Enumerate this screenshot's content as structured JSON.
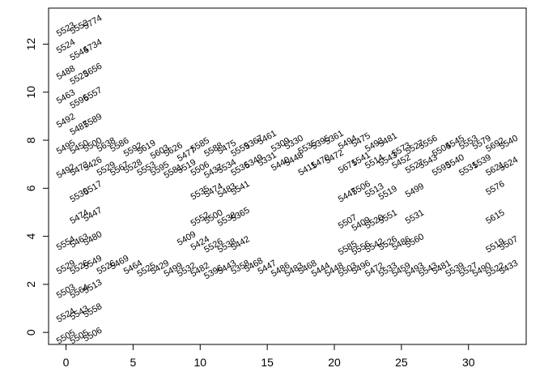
{
  "chart_data": {
    "type": "scatter",
    "title": "",
    "xlabel": "",
    "ylabel": "",
    "xlim": [
      -1.3,
      34.3
    ],
    "ylim": [
      -0.5,
      13.5
    ],
    "x_ticks": [
      0,
      5,
      10,
      15,
      20,
      25,
      30
    ],
    "y_ticks": [
      0,
      2,
      4,
      6,
      8,
      10,
      12
    ],
    "label_rotation_deg": 30,
    "points": [
      {
        "x": 0,
        "y": 12.6,
        "label": "5523"
      },
      {
        "x": 1,
        "y": 12.7,
        "label": "5553"
      },
      {
        "x": 2,
        "y": 12.9,
        "label": "5774"
      },
      {
        "x": 0,
        "y": 11.9,
        "label": "5524"
      },
      {
        "x": 1,
        "y": 11.6,
        "label": "5544"
      },
      {
        "x": 2,
        "y": 11.9,
        "label": "5734"
      },
      {
        "x": 0,
        "y": 10.8,
        "label": "5488"
      },
      {
        "x": 1,
        "y": 10.6,
        "label": "5523"
      },
      {
        "x": 2,
        "y": 10.9,
        "label": "5656"
      },
      {
        "x": 0,
        "y": 9.8,
        "label": "5463"
      },
      {
        "x": 1,
        "y": 9.6,
        "label": "5596"
      },
      {
        "x": 2,
        "y": 9.9,
        "label": "5557"
      },
      {
        "x": 0,
        "y": 8.8,
        "label": "5492"
      },
      {
        "x": 1,
        "y": 8.5,
        "label": "5487"
      },
      {
        "x": 2,
        "y": 8.8,
        "label": "5589"
      },
      {
        "x": 0,
        "y": 7.7,
        "label": "5495"
      },
      {
        "x": 1,
        "y": 7.7,
        "label": "5450"
      },
      {
        "x": 2,
        "y": 7.8,
        "label": "5500"
      },
      {
        "x": 3,
        "y": 7.8,
        "label": "5638"
      },
      {
        "x": 4,
        "y": 7.8,
        "label": "5586"
      },
      {
        "x": 5,
        "y": 7.6,
        "label": "5592"
      },
      {
        "x": 6,
        "y": 7.7,
        "label": "5619"
      },
      {
        "x": 7,
        "y": 7.5,
        "label": "5603"
      },
      {
        "x": 8,
        "y": 7.6,
        "label": "5626"
      },
      {
        "x": 9,
        "y": 7.4,
        "label": "5477"
      },
      {
        "x": 10,
        "y": 7.8,
        "label": "5585"
      },
      {
        "x": 11,
        "y": 7.6,
        "label": "5588"
      },
      {
        "x": 12,
        "y": 7.7,
        "label": "5475"
      },
      {
        "x": 13,
        "y": 7.6,
        "label": "5559"
      },
      {
        "x": 14,
        "y": 7.9,
        "label": "5367"
      },
      {
        "x": 15,
        "y": 8.1,
        "label": "5461"
      },
      {
        "x": 16,
        "y": 7.8,
        "label": "5309"
      },
      {
        "x": 17,
        "y": 7.9,
        "label": "5330"
      },
      {
        "x": 18,
        "y": 7.7,
        "label": "5535"
      },
      {
        "x": 19,
        "y": 7.9,
        "label": "5395"
      },
      {
        "x": 20,
        "y": 8.1,
        "label": "5361"
      },
      {
        "x": 21,
        "y": 7.9,
        "label": "5494"
      },
      {
        "x": 22,
        "y": 8.0,
        "label": "5475"
      },
      {
        "x": 23,
        "y": 7.8,
        "label": "5493"
      },
      {
        "x": 24,
        "y": 8.0,
        "label": "5481"
      },
      {
        "x": 25,
        "y": 7.6,
        "label": "5573"
      },
      {
        "x": 26,
        "y": 7.7,
        "label": "5527"
      },
      {
        "x": 27,
        "y": 7.9,
        "label": "5556"
      },
      {
        "x": 28,
        "y": 7.6,
        "label": "5504"
      },
      {
        "x": 29,
        "y": 7.9,
        "label": "5545"
      },
      {
        "x": 30,
        "y": 7.9,
        "label": "5553"
      },
      {
        "x": 31,
        "y": 7.9,
        "label": "5579"
      },
      {
        "x": 32,
        "y": 7.8,
        "label": "5692"
      },
      {
        "x": 33,
        "y": 7.9,
        "label": "5540"
      },
      {
        "x": 0,
        "y": 6.7,
        "label": "5492"
      },
      {
        "x": 1,
        "y": 6.8,
        "label": "5473"
      },
      {
        "x": 2,
        "y": 7.0,
        "label": "5426"
      },
      {
        "x": 3,
        "y": 6.8,
        "label": "5529"
      },
      {
        "x": 4,
        "y": 6.8,
        "label": "5567"
      },
      {
        "x": 5,
        "y": 6.9,
        "label": "5528"
      },
      {
        "x": 6,
        "y": 6.8,
        "label": "5553"
      },
      {
        "x": 7,
        "y": 6.8,
        "label": "5595"
      },
      {
        "x": 8,
        "y": 6.7,
        "label": "5581"
      },
      {
        "x": 9,
        "y": 6.9,
        "label": "5519"
      },
      {
        "x": 10,
        "y": 6.8,
        "label": "5506"
      },
      {
        "x": 11,
        "y": 6.7,
        "label": "5437"
      },
      {
        "x": 12,
        "y": 6.9,
        "label": "5534"
      },
      {
        "x": 13,
        "y": 6.8,
        "label": "5536"
      },
      {
        "x": 14,
        "y": 7.1,
        "label": "5349"
      },
      {
        "x": 15,
        "y": 7.2,
        "label": "5331"
      },
      {
        "x": 16,
        "y": 7.0,
        "label": "5440"
      },
      {
        "x": 17,
        "y": 7.2,
        "label": "5448"
      },
      {
        "x": 18,
        "y": 6.8,
        "label": "5411"
      },
      {
        "x": 19,
        "y": 7.1,
        "label": "5470"
      },
      {
        "x": 20,
        "y": 7.3,
        "label": "5472"
      },
      {
        "x": 21,
        "y": 6.9,
        "label": "5671"
      },
      {
        "x": 22,
        "y": 7.2,
        "label": "5541"
      },
      {
        "x": 23,
        "y": 7.1,
        "label": "5514"
      },
      {
        "x": 24,
        "y": 7.2,
        "label": "5543"
      },
      {
        "x": 25,
        "y": 7.1,
        "label": "5452"
      },
      {
        "x": 26,
        "y": 6.9,
        "label": "5527"
      },
      {
        "x": 27,
        "y": 7.1,
        "label": "5543"
      },
      {
        "x": 28,
        "y": 6.8,
        "label": "5593"
      },
      {
        "x": 29,
        "y": 7.1,
        "label": "5540"
      },
      {
        "x": 30,
        "y": 6.8,
        "label": "5531"
      },
      {
        "x": 31,
        "y": 7.1,
        "label": "5539"
      },
      {
        "x": 32,
        "y": 6.8,
        "label": "5621"
      },
      {
        "x": 33,
        "y": 7.0,
        "label": "5624"
      },
      {
        "x": 1,
        "y": 5.7,
        "label": "5530"
      },
      {
        "x": 2,
        "y": 6.0,
        "label": "5517"
      },
      {
        "x": 10,
        "y": 5.8,
        "label": "5535"
      },
      {
        "x": 11,
        "y": 5.9,
        "label": "5474"
      },
      {
        "x": 12,
        "y": 5.9,
        "label": "5483"
      },
      {
        "x": 13,
        "y": 6.0,
        "label": "5541"
      },
      {
        "x": 21,
        "y": 5.7,
        "label": "5447"
      },
      {
        "x": 22,
        "y": 6.0,
        "label": "5506"
      },
      {
        "x": 23,
        "y": 5.9,
        "label": "5513"
      },
      {
        "x": 24,
        "y": 5.8,
        "label": "5519"
      },
      {
        "x": 26,
        "y": 5.9,
        "label": "5499"
      },
      {
        "x": 32,
        "y": 6.0,
        "label": "5576"
      },
      {
        "x": 1,
        "y": 4.8,
        "label": "5474"
      },
      {
        "x": 2,
        "y": 4.9,
        "label": "5447"
      },
      {
        "x": 10,
        "y": 4.7,
        "label": "5552"
      },
      {
        "x": 11,
        "y": 4.8,
        "label": "5500"
      },
      {
        "x": 12,
        "y": 4.7,
        "label": "5538"
      },
      {
        "x": 13,
        "y": 4.9,
        "label": "5365"
      },
      {
        "x": 21,
        "y": 4.6,
        "label": "5507"
      },
      {
        "x": 22,
        "y": 4.5,
        "label": "5409"
      },
      {
        "x": 23,
        "y": 4.6,
        "label": "5520"
      },
      {
        "x": 24,
        "y": 4.8,
        "label": "5551"
      },
      {
        "x": 26,
        "y": 4.8,
        "label": "5531"
      },
      {
        "x": 32,
        "y": 4.8,
        "label": "5615"
      },
      {
        "x": 0,
        "y": 3.7,
        "label": "5554"
      },
      {
        "x": 1,
        "y": 3.8,
        "label": "5463"
      },
      {
        "x": 2,
        "y": 3.9,
        "label": "5480"
      },
      {
        "x": 9,
        "y": 3.9,
        "label": "5409"
      },
      {
        "x": 10,
        "y": 3.7,
        "label": "5424"
      },
      {
        "x": 11,
        "y": 3.6,
        "label": "5526"
      },
      {
        "x": 12,
        "y": 3.6,
        "label": "5538"
      },
      {
        "x": 13,
        "y": 3.7,
        "label": "5442"
      },
      {
        "x": 21,
        "y": 3.5,
        "label": "5585"
      },
      {
        "x": 22,
        "y": 3.5,
        "label": "5556"
      },
      {
        "x": 23,
        "y": 3.6,
        "label": "5542"
      },
      {
        "x": 24,
        "y": 3.7,
        "label": "5526"
      },
      {
        "x": 25,
        "y": 3.7,
        "label": "5486"
      },
      {
        "x": 26,
        "y": 3.8,
        "label": "5560"
      },
      {
        "x": 32,
        "y": 3.6,
        "label": "5519"
      },
      {
        "x": 33,
        "y": 3.7,
        "label": "5507"
      },
      {
        "x": 0,
        "y": 2.7,
        "label": "5529"
      },
      {
        "x": 1,
        "y": 2.7,
        "label": "5526"
      },
      {
        "x": 2,
        "y": 2.9,
        "label": "5549"
      },
      {
        "x": 3,
        "y": 2.7,
        "label": "5526"
      },
      {
        "x": 4,
        "y": 2.9,
        "label": "5469"
      },
      {
        "x": 5,
        "y": 2.7,
        "label": "5464"
      },
      {
        "x": 6,
        "y": 2.6,
        "label": "5525"
      },
      {
        "x": 7,
        "y": 2.7,
        "label": "5429"
      },
      {
        "x": 8,
        "y": 2.6,
        "label": "5499"
      },
      {
        "x": 9,
        "y": 2.6,
        "label": "5532"
      },
      {
        "x": 10,
        "y": 2.6,
        "label": "5482"
      },
      {
        "x": 11,
        "y": 2.5,
        "label": "5396"
      },
      {
        "x": 12,
        "y": 2.7,
        "label": "5443"
      },
      {
        "x": 13,
        "y": 2.7,
        "label": "5358"
      },
      {
        "x": 14,
        "y": 2.8,
        "label": "5468"
      },
      {
        "x": 15,
        "y": 2.7,
        "label": "5447"
      },
      {
        "x": 16,
        "y": 2.6,
        "label": "5486"
      },
      {
        "x": 17,
        "y": 2.6,
        "label": "5483"
      },
      {
        "x": 18,
        "y": 2.7,
        "label": "5468"
      },
      {
        "x": 19,
        "y": 2.6,
        "label": "5444"
      },
      {
        "x": 20,
        "y": 2.6,
        "label": "5448"
      },
      {
        "x": 21,
        "y": 2.6,
        "label": "5503"
      },
      {
        "x": 22,
        "y": 2.7,
        "label": "5496"
      },
      {
        "x": 23,
        "y": 2.6,
        "label": "5472"
      },
      {
        "x": 24,
        "y": 2.6,
        "label": "5533"
      },
      {
        "x": 25,
        "y": 2.6,
        "label": "5459"
      },
      {
        "x": 26,
        "y": 2.6,
        "label": "5493"
      },
      {
        "x": 27,
        "y": 2.6,
        "label": "5543"
      },
      {
        "x": 28,
        "y": 2.7,
        "label": "5481"
      },
      {
        "x": 29,
        "y": 2.6,
        "label": "5539"
      },
      {
        "x": 30,
        "y": 2.6,
        "label": "5527"
      },
      {
        "x": 31,
        "y": 2.6,
        "label": "5490"
      },
      {
        "x": 32,
        "y": 2.6,
        "label": "5522"
      },
      {
        "x": 33,
        "y": 2.7,
        "label": "5433"
      },
      {
        "x": 0,
        "y": 1.7,
        "label": "5503"
      },
      {
        "x": 1,
        "y": 1.7,
        "label": "5564"
      },
      {
        "x": 2,
        "y": 1.9,
        "label": "5513"
      },
      {
        "x": 0,
        "y": 0.7,
        "label": "5524"
      },
      {
        "x": 1,
        "y": 0.8,
        "label": "5543"
      },
      {
        "x": 2,
        "y": 0.9,
        "label": "5558"
      },
      {
        "x": 0,
        "y": -0.2,
        "label": "5505"
      },
      {
        "x": 1,
        "y": -0.2,
        "label": "5505"
      },
      {
        "x": 2,
        "y": -0.1,
        "label": "5506"
      }
    ]
  }
}
